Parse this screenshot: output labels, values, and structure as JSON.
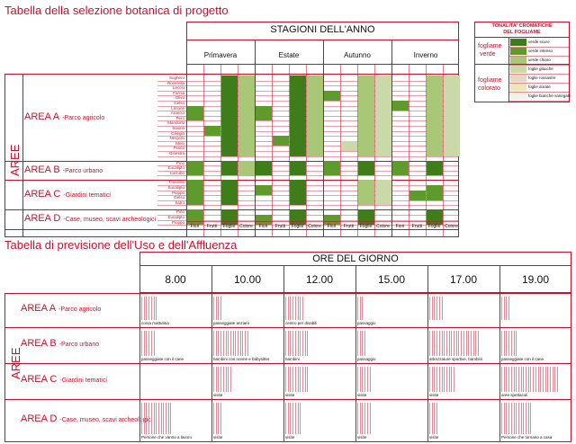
{
  "table1": {
    "title": "Tabella della selezione botanica di progetto",
    "seasons_header": "STAGIONI DELL'ANNO",
    "seasons": [
      "Primavera",
      "Estate",
      "Autunno",
      "Inverno"
    ],
    "sub_columns": [
      "Fiori",
      "Frutti",
      "Foglie",
      "Colore"
    ],
    "aree_label": "AREE",
    "areas": [
      {
        "name": "AREA A",
        "desc": "-Parco agricolo",
        "plants": [
          "Sughero",
          "Roverella",
          "Leccio",
          "Farnia",
          "Olivo",
          "Gelso",
          "Limone",
          "Arancio",
          "Pero",
          "Mandorlo",
          "Susino",
          "Ciliegio",
          "Nespolo",
          "Melo",
          "Pesco",
          "Ginestra"
        ]
      },
      {
        "name": "AREA B",
        "desc": "-Parco urbano",
        "plants": [
          "Pino",
          "Eucalipto",
          "Carrubo"
        ]
      },
      {
        "name": "AREA C",
        "desc": "-Giardini tematici",
        "plants": [
          "Frassino",
          "Eucalipto",
          "Pioppo",
          "Gelso",
          "Ilatro"
        ]
      },
      {
        "name": "AREA D",
        "desc": "-Case, museo, scavi archeologici",
        "plants": [
          "Pino",
          "Eucalipto",
          "Pioppo"
        ]
      }
    ]
  },
  "legend": {
    "title_line1": "TONALITA' CROMATICHE",
    "title_line2": "DEL FOGLIAME",
    "group1_line1": "fogliame",
    "group1_line2": "verde",
    "group2_line1": "fogliame",
    "group2_line2": "colorato",
    "items": [
      "verde scuro",
      "verde intenso",
      "verde chiaro",
      "foglie glauche",
      "foglie rossastre",
      "foglie dorate",
      "foglie bianche variegate"
    ],
    "colors": {
      "dark": "#3f7d1a",
      "intense": "#5e9a2c",
      "light": "#a8c878",
      "glauco": "#c9d9a8",
      "red": "#e7d7c2",
      "gold": "#eee8b8",
      "white": "#f2f2e8"
    }
  },
  "table2": {
    "title": "Tabella di previsione dell'Uso e dell'Affluenza",
    "hours_header": "ORE DEL GIORNO",
    "hours": [
      "8.00",
      "10.00",
      "12.00",
      "15.00",
      "17.00",
      "19.00"
    ],
    "aree_label": "AREE",
    "areas": [
      {
        "name": "AREA A",
        "desc": "-Parco agricolo",
        "notes": [
          "corsa mattutina",
          "passeggiate anziani",
          "centro per disabili",
          "passaggio",
          "",
          ""
        ]
      },
      {
        "name": "AREA B",
        "desc": "-Parco urbano",
        "notes": [
          "passeggiate con il cane",
          "bambini con nonne e babysitter",
          "bambini",
          "passaggio",
          "attrezzature sportive, bambini",
          "passeggiate con il cane"
        ]
      },
      {
        "name": "AREA C",
        "desc": "-Giardini tematici",
        "notes": [
          "",
          "visite",
          "visite",
          "visite",
          "visite",
          "aree spettacoli"
        ]
      },
      {
        "name": "AREA D",
        "desc": "-Case, museo, scavi archeologici",
        "notes": [
          "Persone che vanno a lavoro",
          "visite",
          "visite",
          "visite",
          "visite",
          "Persone che tornano a casa"
        ]
      }
    ],
    "intensity": [
      [
        0.25,
        0.15,
        0.3,
        0.1,
        0.2,
        0.15
      ],
      [
        0.2,
        0.55,
        0.35,
        0.15,
        0.75,
        0.25
      ],
      [
        0.0,
        0.3,
        0.35,
        0.2,
        0.4,
        0.85
      ],
      [
        0.45,
        0.15,
        0.25,
        0.2,
        0.15,
        0.45
      ]
    ]
  }
}
